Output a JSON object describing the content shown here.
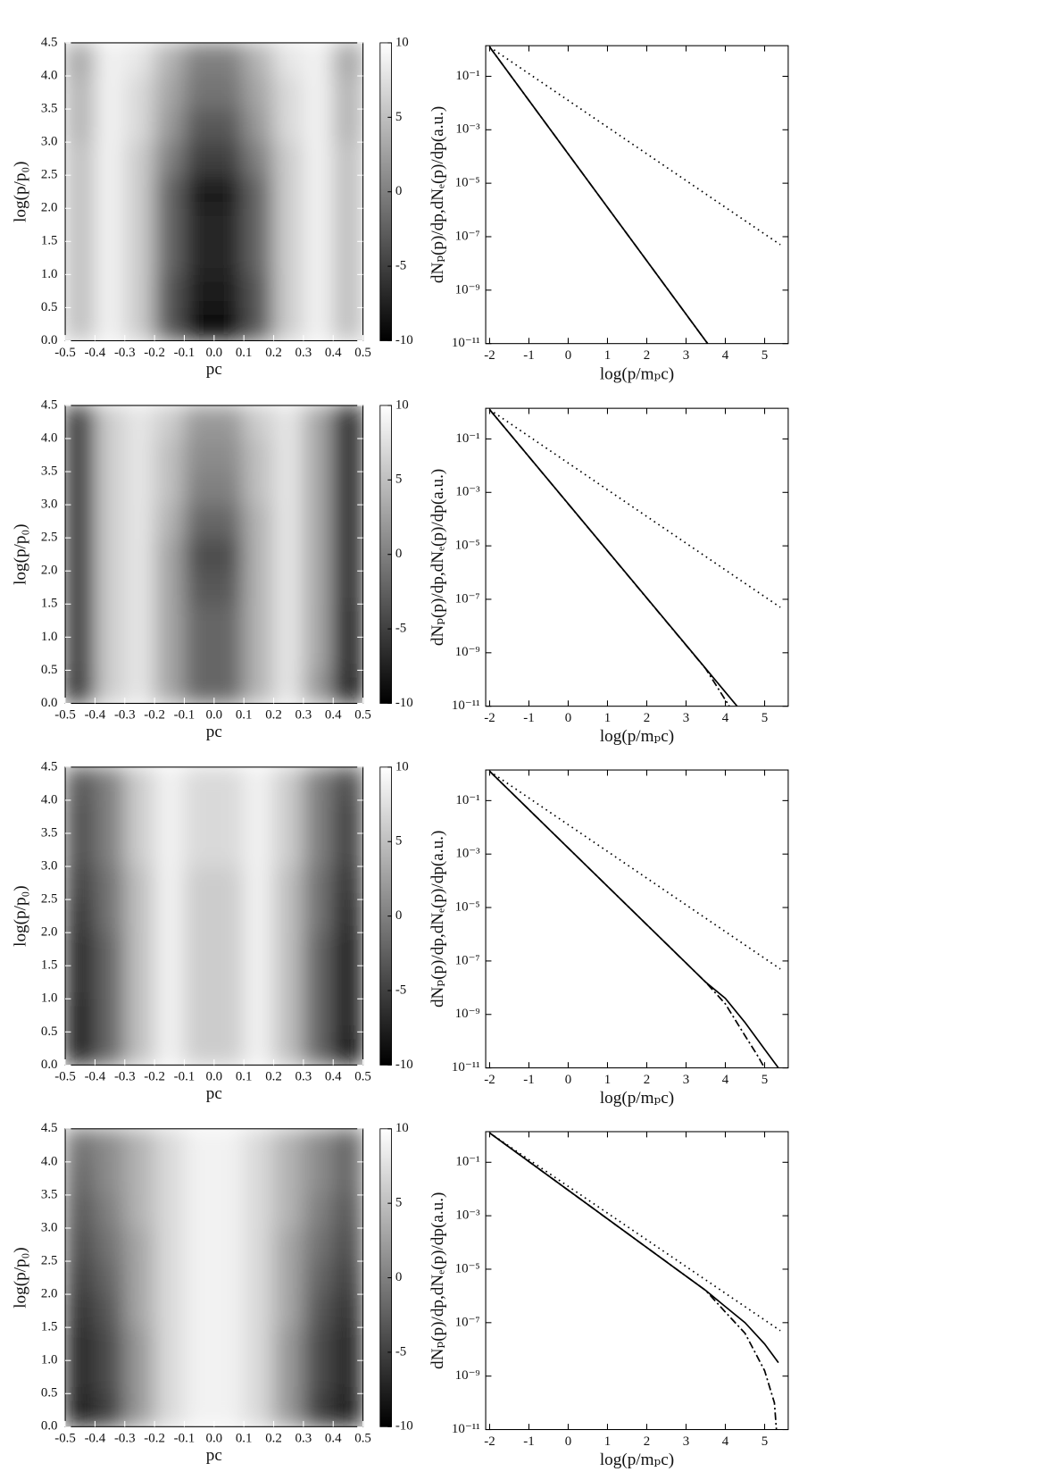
{
  "chart_data": [
    {
      "type": "heatmap",
      "xlabel": "pc",
      "ylabel": "log(p/p₀)",
      "x": [
        -0.45,
        -0.35,
        -0.25,
        -0.15,
        -0.05,
        0.05,
        0.15,
        0.25,
        0.35,
        0.45
      ],
      "y": [
        0.25,
        0.75,
        1.25,
        1.75,
        2.25,
        2.75,
        3.25,
        3.75,
        4.25
      ],
      "z": [
        [
          5,
          9,
          6,
          -3,
          -9,
          -9,
          -3,
          6,
          9,
          5
        ],
        [
          5,
          9,
          6,
          -3,
          -8,
          -8,
          -3,
          6,
          9,
          5
        ],
        [
          5,
          9,
          6,
          -2,
          -7,
          -7,
          -2,
          6,
          9,
          5
        ],
        [
          5,
          9,
          6,
          -2,
          -7,
          -7,
          -2,
          6,
          9,
          5
        ],
        [
          5,
          9,
          6,
          -2,
          -8,
          -8,
          -2,
          6,
          9,
          5
        ],
        [
          5,
          9,
          6,
          0,
          -5,
          -5,
          0,
          6,
          9,
          5
        ],
        [
          4,
          9,
          7,
          2,
          -3,
          -3,
          2,
          7,
          9,
          4
        ],
        [
          4,
          9,
          7,
          3,
          -1,
          -1,
          3,
          7,
          9,
          4
        ],
        [
          3,
          9,
          8,
          4,
          0,
          0,
          4,
          8,
          9,
          3
        ]
      ],
      "xlim": [
        -0.5,
        0.5
      ],
      "ylim": [
        0,
        4.5
      ],
      "xticks": [
        -0.5,
        -0.4,
        -0.3,
        -0.2,
        -0.1,
        {
          "value": 0,
          "label": "0.0"
        },
        0.1,
        0.2,
        0.3,
        0.4,
        0.5
      ],
      "yticks": [
        {
          "value": 0,
          "label": "0.0"
        },
        0.5,
        {
          "value": 1,
          "label": "1.0"
        },
        1.5,
        {
          "value": 2,
          "label": "2.0"
        },
        2.5,
        {
          "value": 3,
          "label": "3.0"
        },
        3.5,
        {
          "value": 4,
          "label": "4.0"
        },
        4.5
      ],
      "colorbar_lim": [
        -10,
        10
      ],
      "colorbar_ticks": [
        10,
        5,
        0,
        -5,
        -10
      ],
      "colormap": [
        "#000000",
        "#ffffff"
      ]
    },
    {
      "type": "line",
      "log_y": true,
      "xlabel": "log(p/mₚc)",
      "ylabel": "dNₚ(p)/dp,dNₑ(p)/dp(a.u.)",
      "xlim": [
        -2.1,
        5.6
      ],
      "ylim": [
        1e-11,
        1.4
      ],
      "xticks": [
        -2,
        -1,
        0,
        1,
        2,
        3,
        4,
        5
      ],
      "yticks": [
        {
          "value": 0.1,
          "label": "10⁻¹"
        },
        {
          "value": 0.001,
          "label": "10⁻³"
        },
        {
          "value": 1e-05,
          "label": "10⁻⁵"
        },
        {
          "value": 1e-07,
          "label": "10⁻⁷"
        },
        {
          "value": 1e-09,
          "label": "10⁻⁹"
        },
        {
          "value": 1e-11,
          "label": "10⁻¹¹"
        }
      ],
      "series": [
        {
          "color": "#000000",
          "dash": "solid",
          "x": [
            -2,
            3.55
          ],
          "values": [
            1.26,
            1e-11
          ]
        },
        {
          "color": "#000000",
          "dash": "dashdot",
          "x": [
            -2,
            3.55
          ],
          "values": [
            1.26,
            1e-11
          ]
        },
        {
          "color": "#000000",
          "dash": "dotted",
          "x": [
            -2,
            5.4
          ],
          "values": [
            1.26,
            5e-08
          ]
        }
      ]
    },
    {
      "type": "heatmap",
      "xlabel": "pc",
      "ylabel": "log(p/p₀)",
      "x": [
        -0.45,
        -0.35,
        -0.25,
        -0.15,
        -0.05,
        0.05,
        0.15,
        0.25,
        0.35,
        0.45
      ],
      "y": [
        0.25,
        0.75,
        1.25,
        1.75,
        2.25,
        2.75,
        3.25,
        3.75,
        4.25
      ],
      "z": [
        [
          -7,
          6,
          8,
          3,
          -2,
          -2,
          4,
          8,
          2,
          -9
        ],
        [
          -6,
          6,
          8,
          3,
          -2,
          -2,
          4,
          8,
          3,
          -8
        ],
        [
          -6,
          6,
          8,
          3,
          -2,
          -2,
          4,
          8,
          3,
          -8
        ],
        [
          -6,
          6,
          8,
          3,
          -3,
          -3,
          4,
          8,
          3,
          -7
        ],
        [
          -6,
          6,
          8,
          3,
          -4,
          -4,
          4,
          8,
          3,
          -7
        ],
        [
          -6,
          6,
          8,
          4,
          -2,
          -2,
          4,
          8,
          3,
          -7
        ],
        [
          -6,
          6,
          8,
          5,
          0,
          0,
          5,
          8,
          3,
          -7
        ],
        [
          -6,
          6,
          8,
          5,
          1,
          1,
          5,
          8,
          3,
          -7
        ],
        [
          -6,
          6,
          8,
          6,
          2,
          2,
          6,
          8,
          3,
          -7
        ]
      ],
      "xlim": [
        -0.5,
        0.5
      ],
      "ylim": [
        0,
        4.5
      ],
      "xticks": [
        -0.5,
        -0.4,
        -0.3,
        -0.2,
        -0.1,
        {
          "value": 0,
          "label": "0.0"
        },
        0.1,
        0.2,
        0.3,
        0.4,
        0.5
      ],
      "yticks": [
        {
          "value": 0,
          "label": "0.0"
        },
        0.5,
        {
          "value": 1,
          "label": "1.0"
        },
        1.5,
        {
          "value": 2,
          "label": "2.0"
        },
        2.5,
        {
          "value": 3,
          "label": "3.0"
        },
        3.5,
        {
          "value": 4,
          "label": "4.0"
        },
        4.5
      ],
      "colorbar_lim": [
        -10,
        10
      ],
      "colorbar_ticks": [
        10,
        5,
        0,
        -5,
        -10
      ],
      "colormap": [
        "#000000",
        "#ffffff"
      ]
    },
    {
      "type": "line",
      "log_y": true,
      "xlabel": "log(p/mₚc)",
      "ylabel": "dNₚ(p)/dp,dNₑ(p)/dp(a.u.)",
      "xlim": [
        -2.1,
        5.6
      ],
      "ylim": [
        1e-11,
        1.4
      ],
      "xticks": [
        -2,
        -1,
        0,
        1,
        2,
        3,
        4,
        5
      ],
      "yticks": [
        {
          "value": 0.1,
          "label": "10⁻¹"
        },
        {
          "value": 0.001,
          "label": "10⁻³"
        },
        {
          "value": 1e-05,
          "label": "10⁻⁵"
        },
        {
          "value": 1e-07,
          "label": "10⁻⁷"
        },
        {
          "value": 1e-09,
          "label": "10⁻⁹"
        },
        {
          "value": 1e-11,
          "label": "10⁻¹¹"
        }
      ],
      "series": [
        {
          "color": "#000000",
          "dash": "solid",
          "x": [
            -2,
            4.3
          ],
          "values": [
            1.26,
            1e-11
          ]
        },
        {
          "color": "#000000",
          "dash": "dashdot",
          "x": [
            -2,
            3.5,
            4.1
          ],
          "values": [
            1.26,
            2.5e-10,
            1e-11
          ]
        },
        {
          "color": "#000000",
          "dash": "dotted",
          "x": [
            -2,
            5.4
          ],
          "values": [
            1.26,
            5e-08
          ]
        }
      ]
    },
    {
      "type": "heatmap",
      "xlabel": "pc",
      "ylabel": "log(p/p₀)",
      "x": [
        -0.45,
        -0.35,
        -0.25,
        -0.15,
        -0.05,
        0.05,
        0.15,
        0.25,
        0.35,
        0.45
      ],
      "y": [
        0.25,
        0.75,
        1.25,
        1.75,
        2.25,
        2.75,
        3.25,
        3.75,
        4.25
      ],
      "z": [
        [
          -8,
          -2,
          5,
          9,
          6,
          6,
          9,
          5,
          -2,
          -9
        ],
        [
          -8,
          -2,
          5,
          9,
          6,
          6,
          9,
          5,
          -2,
          -8
        ],
        [
          -7,
          -2,
          5,
          9,
          6,
          6,
          9,
          5,
          -2,
          -8
        ],
        [
          -7,
          -2,
          5,
          9,
          6,
          6,
          9,
          5,
          -2,
          -8
        ],
        [
          -6,
          -1,
          5,
          9,
          6,
          6,
          9,
          5,
          -1,
          -7
        ],
        [
          -5,
          -1,
          5,
          9,
          6,
          6,
          9,
          5,
          -1,
          -6
        ],
        [
          -4,
          0,
          6,
          9,
          7,
          7,
          9,
          6,
          0,
          -5
        ],
        [
          -4,
          0,
          6,
          9,
          7,
          7,
          9,
          6,
          0,
          -5
        ],
        [
          -3,
          0,
          6,
          9,
          7,
          7,
          9,
          6,
          0,
          -4
        ]
      ],
      "xlim": [
        -0.5,
        0.5
      ],
      "ylim": [
        0,
        4.5
      ],
      "xticks": [
        -0.5,
        -0.4,
        -0.3,
        -0.2,
        -0.1,
        {
          "value": 0,
          "label": "0.0"
        },
        0.1,
        0.2,
        0.3,
        0.4,
        0.5
      ],
      "yticks": [
        {
          "value": 0,
          "label": "0.0"
        },
        0.5,
        {
          "value": 1,
          "label": "1.0"
        },
        1.5,
        {
          "value": 2,
          "label": "2.0"
        },
        2.5,
        {
          "value": 3,
          "label": "3.0"
        },
        3.5,
        {
          "value": 4,
          "label": "4.0"
        },
        4.5
      ],
      "colorbar_lim": [
        -10,
        10
      ],
      "colorbar_ticks": [
        10,
        5,
        0,
        -5,
        -10
      ],
      "colormap": [
        "#000000",
        "#ffffff"
      ]
    },
    {
      "type": "line",
      "log_y": true,
      "xlabel": "log(p/mₚc)",
      "ylabel": "dNₚ(p)/dp,dNₑ(p)/dp(a.u.)",
      "xlim": [
        -2.1,
        5.6
      ],
      "ylim": [
        1e-11,
        1.4
      ],
      "xticks": [
        -2,
        -1,
        0,
        1,
        2,
        3,
        4,
        5
      ],
      "yticks": [
        {
          "value": 0.1,
          "label": "10⁻¹"
        },
        {
          "value": 0.001,
          "label": "10⁻³"
        },
        {
          "value": 1e-05,
          "label": "10⁻⁵"
        },
        {
          "value": 1e-07,
          "label": "10⁻⁷"
        },
        {
          "value": 1e-09,
          "label": "10⁻⁹"
        },
        {
          "value": 1e-11,
          "label": "10⁻¹¹"
        }
      ],
      "series": [
        {
          "color": "#000000",
          "dash": "solid",
          "x": [
            -2,
            3.5,
            4,
            4.5,
            5,
            5.35
          ],
          "values": [
            1.26,
            1.6e-08,
            4e-09,
            5e-10,
            5e-11,
            1e-11
          ]
        },
        {
          "color": "#000000",
          "dash": "dashdot",
          "x": [
            -2,
            3.5,
            4,
            4.5,
            4.8,
            5.0
          ],
          "values": [
            1.26,
            1.6e-08,
            2.5e-09,
            1.6e-10,
            3.2e-11,
            1e-11
          ]
        },
        {
          "color": "#000000",
          "dash": "dotted",
          "x": [
            -2,
            5.4
          ],
          "values": [
            1.26,
            5e-08
          ]
        }
      ]
    },
    {
      "type": "heatmap",
      "xlabel": "pc",
      "ylabel": "log(p/p₀)",
      "x": [
        -0.45,
        -0.35,
        -0.25,
        -0.15,
        -0.05,
        0.05,
        0.15,
        0.25,
        0.35,
        0.45
      ],
      "y": [
        0.25,
        0.75,
        1.25,
        1.75,
        2.25,
        2.75,
        3.25,
        3.75,
        4.25
      ],
      "z": [
        [
          -8,
          -5,
          2,
          7,
          9,
          9,
          7,
          2,
          -5,
          -8
        ],
        [
          -7,
          -4,
          2,
          7,
          9,
          9,
          7,
          2,
          -4,
          -7
        ],
        [
          -7,
          -4,
          2,
          7,
          9,
          9,
          7,
          2,
          -4,
          -7
        ],
        [
          -6,
          -3,
          3,
          7,
          9,
          9,
          7,
          3,
          -3,
          -6
        ],
        [
          -5,
          -2,
          3,
          7,
          9,
          9,
          7,
          3,
          -2,
          -5
        ],
        [
          -4,
          -1,
          3,
          7,
          9,
          9,
          7,
          3,
          -1,
          -4
        ],
        [
          -3,
          0,
          4,
          7,
          9,
          9,
          7,
          4,
          0,
          -3
        ],
        [
          -2,
          1,
          4,
          7,
          9,
          9,
          7,
          4,
          1,
          -2
        ],
        [
          -1,
          1,
          4,
          7,
          9,
          9,
          7,
          4,
          1,
          -2
        ]
      ],
      "xlim": [
        -0.5,
        0.5
      ],
      "ylim": [
        0,
        4.5
      ],
      "xticks": [
        -0.5,
        -0.4,
        -0.3,
        -0.2,
        -0.1,
        {
          "value": 0,
          "label": "0.0"
        },
        0.1,
        0.2,
        0.3,
        0.4,
        0.5
      ],
      "yticks": [
        {
          "value": 0,
          "label": "0.0"
        },
        0.5,
        {
          "value": 1,
          "label": "1.0"
        },
        1.5,
        {
          "value": 2,
          "label": "2.0"
        },
        2.5,
        {
          "value": 3,
          "label": "3.0"
        },
        3.5,
        {
          "value": 4,
          "label": "4.0"
        },
        4.5
      ],
      "colorbar_lim": [
        -10,
        10
      ],
      "colorbar_ticks": [
        10,
        5,
        0,
        -5,
        -10
      ],
      "colormap": [
        "#000000",
        "#ffffff"
      ]
    },
    {
      "type": "line",
      "log_y": true,
      "xlabel": "log(p/mₚc)",
      "ylabel": "dNₚ(p)/dp,dNₑ(p)/dp(a.u.)",
      "xlim": [
        -2.1,
        5.6
      ],
      "ylim": [
        1e-11,
        1.4
      ],
      "xticks": [
        -2,
        -1,
        0,
        1,
        2,
        3,
        4,
        5
      ],
      "yticks": [
        {
          "value": 0.1,
          "label": "10⁻¹"
        },
        {
          "value": 0.001,
          "label": "10⁻³"
        },
        {
          "value": 1e-05,
          "label": "10⁻⁵"
        },
        {
          "value": 1e-07,
          "label": "10⁻⁷"
        },
        {
          "value": 1e-09,
          "label": "10⁻⁹"
        },
        {
          "value": 1e-11,
          "label": "10⁻¹¹"
        }
      ],
      "series": [
        {
          "color": "#000000",
          "dash": "solid",
          "x": [
            -2,
            3.5,
            4,
            4.5,
            5,
            5.35
          ],
          "values": [
            1.26,
            1.6e-06,
            4e-07,
            1e-07,
            1.6e-08,
            3.2e-09
          ]
        },
        {
          "color": "#000000",
          "dash": "dashdot",
          "x": [
            -2,
            3.5,
            4,
            4.5,
            5,
            5.25,
            5.3
          ],
          "values": [
            1.26,
            1.6e-06,
            2.5e-07,
            4e-08,
            1.6e-09,
            1e-10,
            1e-11
          ]
        },
        {
          "color": "#000000",
          "dash": "dotted",
          "x": [
            -2,
            5.4
          ],
          "values": [
            1.26,
            5e-08
          ]
        }
      ]
    }
  ]
}
